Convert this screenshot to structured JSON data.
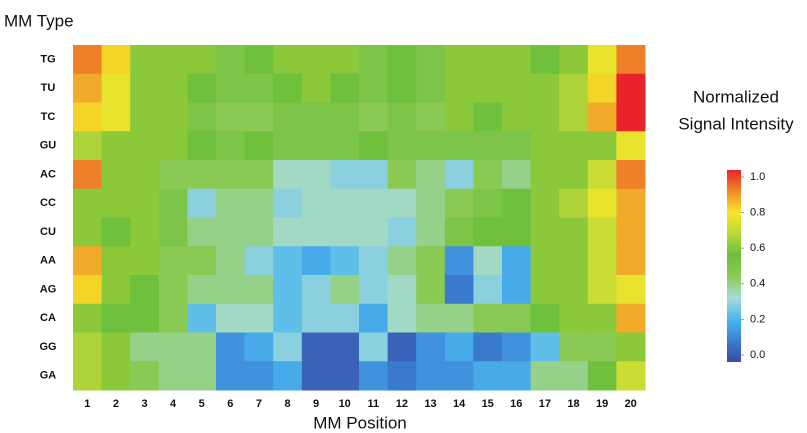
{
  "chart_data": {
    "type": "heatmap",
    "y_axis_title": "MM Type",
    "x_axis_title": "MM Position",
    "colorbar_title": [
      "Normalized",
      "Signal Intensity"
    ],
    "x": [
      "1",
      "2",
      "3",
      "4",
      "5",
      "6",
      "7",
      "8",
      "9",
      "10",
      "11",
      "12",
      "13",
      "14",
      "15",
      "16",
      "17",
      "18",
      "19",
      "20"
    ],
    "y": [
      "TG",
      "TU",
      "TC",
      "GU",
      "AC",
      "CC",
      "CU",
      "AA",
      "AG",
      "CA",
      "GG",
      "GA"
    ],
    "z": [
      [
        0.9,
        0.8,
        0.6,
        0.6,
        0.6,
        0.5,
        0.55,
        0.6,
        0.6,
        0.6,
        0.5,
        0.55,
        0.5,
        0.6,
        0.6,
        0.6,
        0.55,
        0.6,
        0.75,
        0.9
      ],
      [
        0.85,
        0.75,
        0.6,
        0.6,
        0.55,
        0.5,
        0.5,
        0.55,
        0.6,
        0.55,
        0.5,
        0.55,
        0.5,
        0.6,
        0.6,
        0.6,
        0.6,
        0.65,
        0.8,
        1.0
      ],
      [
        0.8,
        0.75,
        0.6,
        0.6,
        0.5,
        0.45,
        0.45,
        0.5,
        0.5,
        0.5,
        0.45,
        0.5,
        0.45,
        0.6,
        0.55,
        0.6,
        0.6,
        0.65,
        0.85,
        1.0
      ],
      [
        0.65,
        0.6,
        0.6,
        0.6,
        0.55,
        0.5,
        0.55,
        0.5,
        0.5,
        0.5,
        0.55,
        0.5,
        0.5,
        0.5,
        0.5,
        0.5,
        0.6,
        0.6,
        0.6,
        0.75
      ],
      [
        0.9,
        0.6,
        0.6,
        0.45,
        0.45,
        0.45,
        0.45,
        0.35,
        0.35,
        0.3,
        0.3,
        0.45,
        0.4,
        0.3,
        0.45,
        0.4,
        0.6,
        0.6,
        0.7,
        0.9
      ],
      [
        0.6,
        0.6,
        0.6,
        0.5,
        0.3,
        0.4,
        0.4,
        0.3,
        0.35,
        0.35,
        0.35,
        0.35,
        0.4,
        0.45,
        0.5,
        0.55,
        0.6,
        0.65,
        0.75,
        0.85
      ],
      [
        0.6,
        0.55,
        0.6,
        0.5,
        0.4,
        0.4,
        0.4,
        0.35,
        0.35,
        0.35,
        0.35,
        0.3,
        0.4,
        0.5,
        0.55,
        0.55,
        0.6,
        0.6,
        0.7,
        0.85
      ],
      [
        0.85,
        0.6,
        0.6,
        0.45,
        0.45,
        0.4,
        0.3,
        0.25,
        0.2,
        0.25,
        0.3,
        0.4,
        0.45,
        0.15,
        0.35,
        0.2,
        0.6,
        0.6,
        0.7,
        0.85
      ],
      [
        0.8,
        0.6,
        0.55,
        0.45,
        0.4,
        0.4,
        0.4,
        0.25,
        0.3,
        0.4,
        0.3,
        0.35,
        0.45,
        0.1,
        0.3,
        0.2,
        0.6,
        0.6,
        0.7,
        0.75
      ],
      [
        0.6,
        0.55,
        0.55,
        0.45,
        0.25,
        0.35,
        0.35,
        0.25,
        0.3,
        0.3,
        0.2,
        0.35,
        0.4,
        0.4,
        0.45,
        0.45,
        0.55,
        0.6,
        0.6,
        0.85
      ],
      [
        0.65,
        0.6,
        0.4,
        0.4,
        0.4,
        0.15,
        0.2,
        0.3,
        0.05,
        0.05,
        0.3,
        0.05,
        0.15,
        0.2,
        0.1,
        0.15,
        0.25,
        0.45,
        0.45,
        0.6
      ],
      [
        0.65,
        0.6,
        0.45,
        0.4,
        0.4,
        0.15,
        0.15,
        0.2,
        0.05,
        0.05,
        0.15,
        0.1,
        0.15,
        0.15,
        0.2,
        0.2,
        0.4,
        0.4,
        0.55,
        0.7
      ]
    ],
    "zlim": [
      0,
      1
    ],
    "zticks": [
      {
        "value": 0,
        "label": "0.0"
      },
      {
        "value": 0.2,
        "label": "0.2"
      },
      {
        "value": 0.4,
        "label": "0.4"
      },
      {
        "value": 0.6,
        "label": "0.6"
      },
      {
        "value": 0.8,
        "label": "0.8"
      },
      {
        "value": 1,
        "label": "1.0"
      }
    ],
    "colors": [
      "#3b4aa6",
      "#3a7fd0",
      "#49b6ee",
      "#a6dbd8",
      "#8ccb55",
      "#6cbf3c",
      "#b9d83a",
      "#f6e62a",
      "#f08a2a",
      "#e8242a"
    ]
  }
}
